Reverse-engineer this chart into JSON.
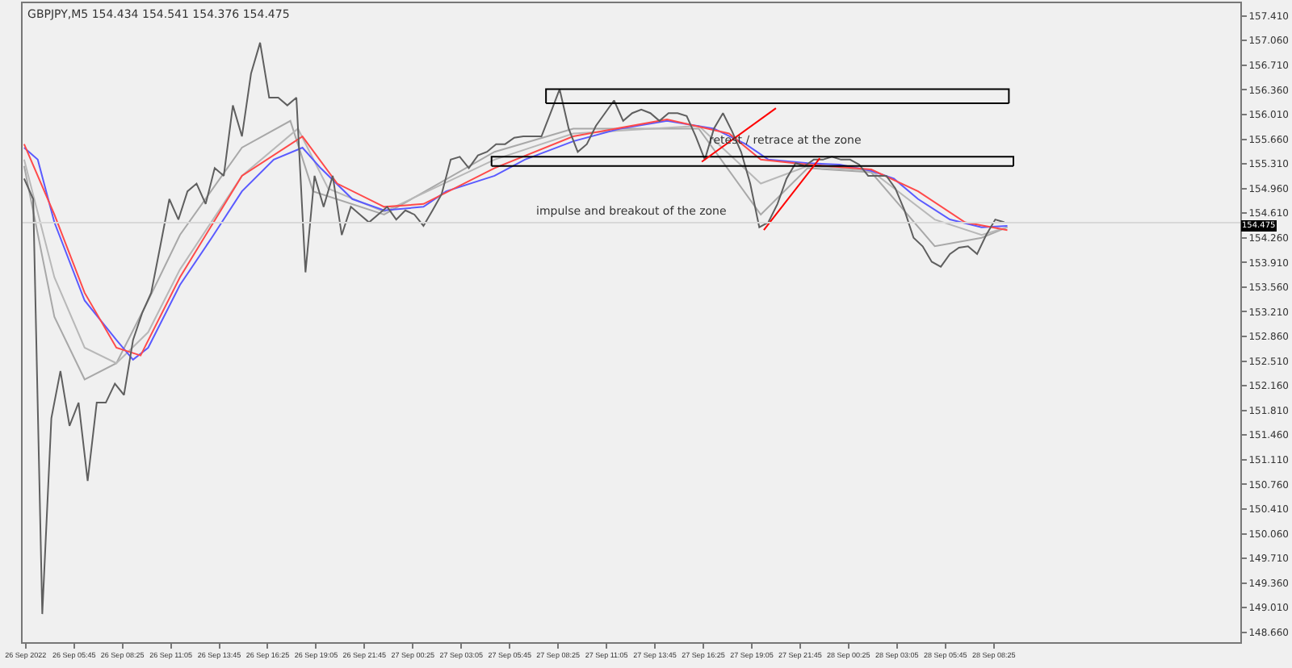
{
  "chart_data": {
    "type": "line",
    "title": "GBPJPY,M5 154.434 154.541 154.376 154.475",
    "xlim": [
      "2022-09-26T02:55",
      "2022-09-28T22:00"
    ],
    "ylim": [
      148.52,
      157.59
    ],
    "xticks": [
      {
        "value": "2022-09-26T03:05",
        "label": "26 Sep 2022"
      },
      {
        "value": "2022-09-26T05:45",
        "label": "26 Sep 05:45"
      },
      {
        "value": "2022-09-26T08:25",
        "label": "26 Sep 08:25"
      },
      {
        "value": "2022-09-26T11:05",
        "label": "26 Sep 11:05"
      },
      {
        "value": "2022-09-26T13:45",
        "label": "26 Sep 13:45"
      },
      {
        "value": "2022-09-26T16:25",
        "label": "26 Sep 16:25"
      },
      {
        "value": "2022-09-26T19:05",
        "label": "26 Sep 19:05"
      },
      {
        "value": "2022-09-26T21:45",
        "label": "26 Sep 21:45"
      },
      {
        "value": "2022-09-27T00:25",
        "label": "27 Sep 00:25"
      },
      {
        "value": "2022-09-27T03:05",
        "label": "27 Sep 03:05"
      },
      {
        "value": "2022-09-27T05:45",
        "label": "27 Sep 05:45"
      },
      {
        "value": "2022-09-27T08:25",
        "label": "27 Sep 08:25"
      },
      {
        "value": "2022-09-27T11:05",
        "label": "27 Sep 11:05"
      },
      {
        "value": "2022-09-27T13:45",
        "label": "27 Sep 13:45"
      },
      {
        "value": "2022-09-27T16:25",
        "label": "27 Sep 16:25"
      },
      {
        "value": "2022-09-27T19:05",
        "label": "27 Sep 19:05"
      },
      {
        "value": "2022-09-27T21:45",
        "label": "27 Sep 21:45"
      },
      {
        "value": "2022-09-28T00:25",
        "label": "28 Sep 00:25"
      },
      {
        "value": "2022-09-28T03:05",
        "label": "28 Sep 03:05"
      },
      {
        "value": "2022-09-28T05:45",
        "label": "28 Sep 05:45"
      },
      {
        "value": "2022-09-28T08:25",
        "label": "28 Sep 08:25"
      }
    ],
    "yticks": [
      {
        "value": 148.66,
        "label": "148.660"
      },
      {
        "value": 149.01,
        "label": "149.010"
      },
      {
        "value": 149.36,
        "label": "149.360"
      },
      {
        "value": 149.71,
        "label": "149.710"
      },
      {
        "value": 150.06,
        "label": "150.060"
      },
      {
        "value": 150.41,
        "label": "150.410"
      },
      {
        "value": 150.76,
        "label": "150.760"
      },
      {
        "value": 151.11,
        "label": "151.110"
      },
      {
        "value": 151.46,
        "label": "151.460"
      },
      {
        "value": 151.81,
        "label": "151.810"
      },
      {
        "value": 152.16,
        "label": "152.160"
      },
      {
        "value": 152.51,
        "label": "152.510"
      },
      {
        "value": 152.86,
        "label": "152.860"
      },
      {
        "value": 153.21,
        "label": "153.210"
      },
      {
        "value": 153.56,
        "label": "153.560"
      },
      {
        "value": 153.91,
        "label": "153.910"
      },
      {
        "value": 154.26,
        "label": "154.260"
      },
      {
        "value": 154.61,
        "label": "154.610"
      },
      {
        "value": 154.96,
        "label": "154.960"
      },
      {
        "value": 155.31,
        "label": "155.310"
      },
      {
        "value": 155.66,
        "label": "155.660"
      },
      {
        "value": 156.01,
        "label": "156.010"
      },
      {
        "value": 156.36,
        "label": "156.360"
      },
      {
        "value": 156.71,
        "label": "156.710"
      },
      {
        "value": 157.06,
        "label": "157.060"
      },
      {
        "value": 157.41,
        "label": "157.410"
      }
    ],
    "grid": false,
    "marker": "none",
    "line_style": "solid",
    "ref_lines": [
      {
        "axis": "y",
        "value": 154.475,
        "label": "154.475",
        "color": "#d8d8d8"
      }
    ],
    "annotations": [
      "impulse and breakout of the zone",
      "retest / retrace at the zone"
    ],
    "series": [
      {
        "color": "#a8a8a8",
        "x": [
          "2022-09-26T03:00",
          "2022-09-26T04:40",
          "2022-09-26T06:20",
          "2022-09-26T08:05",
          "2022-09-26T09:50",
          "2022-09-26T11:35",
          "2022-09-26T15:00",
          "2022-09-26T17:40",
          "2022-09-26T18:55",
          "2022-09-26T22:50",
          "2022-09-27T04:55",
          "2022-09-27T09:15",
          "2022-09-27T16:10",
          "2022-09-27T19:35",
          "2022-09-27T22:10",
          "2022-09-28T01:40",
          "2022-09-28T05:10",
          "2022-09-28T07:45",
          "2022-09-28T09:10"
        ],
        "values": [
          155.28,
          153.14,
          152.25,
          152.48,
          153.37,
          154.3,
          155.54,
          155.92,
          154.92,
          154.59,
          155.48,
          155.81,
          155.81,
          154.59,
          155.25,
          155.19,
          154.14,
          154.26,
          154.41
        ]
      },
      {
        "color": "#b8b8b8",
        "x": [
          "2022-09-26T03:00",
          "2022-09-26T04:40",
          "2022-09-26T06:20",
          "2022-09-26T08:05",
          "2022-09-26T09:50",
          "2022-09-26T11:35",
          "2022-09-26T15:00",
          "2022-09-26T18:05",
          "2022-09-26T19:45",
          "2022-09-26T22:50",
          "2022-09-27T04:55",
          "2022-09-27T09:15",
          "2022-09-27T16:10",
          "2022-09-27T19:35",
          "2022-09-27T22:10",
          "2022-09-28T01:40",
          "2022-09-28T05:10",
          "2022-09-28T07:45",
          "2022-09-28T09:10"
        ],
        "values": [
          155.37,
          153.7,
          152.7,
          152.48,
          152.92,
          153.81,
          155.14,
          155.81,
          154.96,
          154.63,
          155.37,
          155.74,
          155.85,
          155.03,
          155.28,
          155.21,
          154.52,
          154.3,
          154.41
        ]
      },
      {
        "color": "#5a5aff",
        "x": [
          "2022-09-26T03:00",
          "2022-09-26T03:45",
          "2022-09-26T04:40",
          "2022-09-26T06:20",
          "2022-09-26T08:05",
          "2022-09-26T09:00",
          "2022-09-26T09:50",
          "2022-09-26T11:35",
          "2022-09-26T13:20",
          "2022-09-26T15:00",
          "2022-09-26T16:45",
          "2022-09-26T18:20",
          "2022-09-26T19:20",
          "2022-09-26T21:05",
          "2022-09-26T22:50",
          "2022-09-27T01:00",
          "2022-09-27T02:15",
          "2022-09-27T04:55",
          "2022-09-27T06:35",
          "2022-09-27T09:15",
          "2022-09-27T11:50",
          "2022-09-27T14:25",
          "2022-09-27T17:00",
          "2022-09-27T18:45",
          "2022-09-27T20:00",
          "2022-09-27T22:10",
          "2022-09-27T23:55",
          "2022-09-28T01:40",
          "2022-09-28T02:55",
          "2022-09-28T04:15",
          "2022-09-28T06:00",
          "2022-09-28T07:45",
          "2022-09-28T09:10"
        ],
        "values": [
          155.54,
          155.37,
          154.48,
          153.37,
          152.81,
          152.53,
          152.7,
          153.59,
          154.26,
          154.92,
          155.37,
          155.54,
          155.25,
          154.81,
          154.65,
          154.7,
          154.92,
          155.14,
          155.37,
          155.63,
          155.81,
          155.92,
          155.81,
          155.59,
          155.37,
          155.32,
          155.3,
          155.21,
          155.1,
          154.81,
          154.52,
          154.41,
          154.43
        ]
      },
      {
        "color": "#ff4a4a",
        "x": [
          "2022-09-26T03:00",
          "2022-09-26T04:40",
          "2022-09-26T06:20",
          "2022-09-26T08:05",
          "2022-09-26T09:25",
          "2022-09-26T11:35",
          "2022-09-26T15:00",
          "2022-09-26T18:20",
          "2022-09-26T20:15",
          "2022-09-26T22:50",
          "2022-09-27T01:00",
          "2022-09-27T04:55",
          "2022-09-27T09:15",
          "2022-09-27T14:25",
          "2022-09-27T17:50",
          "2022-09-27T19:35",
          "2022-09-27T22:10",
          "2022-09-28T01:40",
          "2022-09-28T04:15",
          "2022-09-28T06:50",
          "2022-09-28T09:10"
        ],
        "values": [
          155.59,
          154.59,
          153.48,
          152.7,
          152.59,
          153.7,
          155.14,
          155.7,
          155.03,
          154.7,
          154.74,
          155.25,
          155.7,
          155.94,
          155.74,
          155.37,
          155.3,
          155.23,
          154.92,
          154.48,
          154.37
        ]
      },
      {
        "color": "#5f5f5f",
        "x": [
          "2022-09-26T03:00",
          "2022-09-26T03:30",
          "2022-09-26T04:00",
          "2022-09-26T04:30",
          "2022-09-26T05:00",
          "2022-09-26T05:30",
          "2022-09-26T06:00",
          "2022-09-26T06:30",
          "2022-09-26T07:00",
          "2022-09-26T07:30",
          "2022-09-26T08:00",
          "2022-09-26T08:30",
          "2022-09-26T09:00",
          "2022-09-26T09:30",
          "2022-09-26T10:00",
          "2022-09-26T10:30",
          "2022-09-26T11:00",
          "2022-09-26T11:30",
          "2022-09-26T12:00",
          "2022-09-26T12:30",
          "2022-09-26T13:00",
          "2022-09-26T13:30",
          "2022-09-26T14:00",
          "2022-09-26T14:30",
          "2022-09-26T15:00",
          "2022-09-26T15:30",
          "2022-09-26T16:00",
          "2022-09-26T16:30",
          "2022-09-26T17:00",
          "2022-09-26T17:30",
          "2022-09-26T18:00",
          "2022-09-26T18:30",
          "2022-09-26T19:00",
          "2022-09-26T19:30",
          "2022-09-26T20:00",
          "2022-09-26T20:30",
          "2022-09-26T21:00",
          "2022-09-26T21:30",
          "2022-09-26T22:00",
          "2022-09-26T22:30",
          "2022-09-26T23:00",
          "2022-09-26T23:30",
          "2022-09-27T00:00",
          "2022-09-27T00:30",
          "2022-09-27T01:00",
          "2022-09-27T01:30",
          "2022-09-27T02:00",
          "2022-09-27T02:30",
          "2022-09-27T03:00",
          "2022-09-27T03:30",
          "2022-09-27T04:00",
          "2022-09-27T04:30",
          "2022-09-27T05:00",
          "2022-09-27T05:30",
          "2022-09-27T06:00",
          "2022-09-27T06:30",
          "2022-09-27T07:00",
          "2022-09-27T07:30",
          "2022-09-27T08:00",
          "2022-09-27T08:30",
          "2022-09-27T09:00",
          "2022-09-27T09:30",
          "2022-09-27T10:00",
          "2022-09-27T10:30",
          "2022-09-27T11:00",
          "2022-09-27T11:30",
          "2022-09-27T12:00",
          "2022-09-27T12:30",
          "2022-09-27T13:00",
          "2022-09-27T13:30",
          "2022-09-27T14:00",
          "2022-09-27T14:30",
          "2022-09-27T15:00",
          "2022-09-27T15:30",
          "2022-09-27T16:00",
          "2022-09-27T16:30",
          "2022-09-27T17:00",
          "2022-09-27T17:30",
          "2022-09-27T18:00",
          "2022-09-27T18:30",
          "2022-09-27T19:00",
          "2022-09-27T19:30",
          "2022-09-27T20:00",
          "2022-09-27T20:30",
          "2022-09-27T21:00",
          "2022-09-27T21:30",
          "2022-09-27T22:00",
          "2022-09-27T22:30",
          "2022-09-27T23:00",
          "2022-09-27T23:30",
          "2022-09-28T00:00",
          "2022-09-28T00:30",
          "2022-09-28T01:00",
          "2022-09-28T01:30",
          "2022-09-28T02:00",
          "2022-09-28T02:30",
          "2022-09-28T03:00",
          "2022-09-28T03:30",
          "2022-09-28T04:00",
          "2022-09-28T04:30",
          "2022-09-28T05:00",
          "2022-09-28T05:30",
          "2022-09-28T06:00",
          "2022-09-28T06:30",
          "2022-09-28T07:00",
          "2022-09-28T07:30",
          "2022-09-28T08:00",
          "2022-09-28T08:30",
          "2022-09-28T09:00"
        ],
        "values": [
          155.1,
          154.81,
          148.92,
          151.7,
          152.37,
          151.59,
          151.92,
          150.81,
          151.92,
          151.92,
          152.19,
          152.03,
          152.81,
          153.19,
          153.48,
          154.14,
          154.81,
          154.52,
          154.92,
          155.03,
          154.74,
          155.25,
          155.14,
          156.14,
          155.7,
          156.59,
          157.03,
          156.25,
          156.25,
          156.14,
          156.25,
          153.77,
          155.14,
          154.7,
          155.14,
          154.3,
          154.7,
          154.59,
          154.48,
          154.59,
          154.7,
          154.52,
          154.65,
          154.59,
          154.43,
          154.65,
          154.88,
          155.37,
          155.41,
          155.25,
          155.43,
          155.48,
          155.59,
          155.59,
          155.68,
          155.7,
          155.7,
          155.7,
          156.03,
          156.37,
          155.81,
          155.48,
          155.59,
          155.85,
          156.03,
          156.21,
          155.92,
          156.03,
          156.08,
          156.03,
          155.92,
          156.03,
          156.03,
          155.99,
          155.7,
          155.37,
          155.81,
          156.03,
          155.77,
          155.48,
          155.03,
          154.41,
          154.48,
          154.74,
          155.1,
          155.32,
          155.28,
          155.37,
          155.37,
          155.41,
          155.37,
          155.37,
          155.3,
          155.14,
          155.14,
          155.14,
          154.96,
          154.65,
          154.26,
          154.14,
          153.92,
          153.85,
          154.03,
          154.12,
          154.14,
          154.03,
          154.3,
          154.52,
          154.48
        ]
      },
      {
        "color": "#000000",
        "x": [
          "2022-09-27T07:45",
          "2022-09-27T07:45",
          "2022-09-28T09:15",
          "2022-09-28T09:15"
        ],
        "values": [
          156.17,
          156.37,
          156.37,
          156.17
        ]
      },
      {
        "color": "#000000",
        "x": [
          "2022-09-27T07:45",
          "2022-09-28T09:15"
        ],
        "values": [
          156.17,
          156.17
        ]
      },
      {
        "color": "#000000",
        "x": [
          "2022-09-27T04:45",
          "2022-09-27T04:45",
          "2022-09-28T09:30",
          "2022-09-28T09:30"
        ],
        "values": [
          155.28,
          155.41,
          155.41,
          155.28
        ]
      },
      {
        "color": "#000000",
        "x": [
          "2022-09-27T04:45",
          "2022-09-28T09:30"
        ],
        "values": [
          155.28,
          155.28
        ]
      },
      {
        "color": "#ff0000",
        "x": [
          "2022-09-27T16:20",
          "2022-09-27T20:25"
        ],
        "values": [
          155.34,
          156.1
        ]
      },
      {
        "color": "#ff0000",
        "x": [
          "2022-09-27T19:45",
          "2022-09-27T22:50"
        ],
        "values": [
          154.37,
          155.39
        ]
      }
    ]
  }
}
